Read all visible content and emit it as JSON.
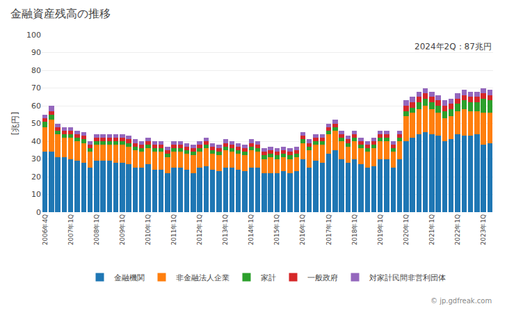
{
  "chart_data": {
    "type": "bar",
    "stacked": true,
    "title": "金融資産残高の推移",
    "y_label": "[兆円]",
    "annotations": [
      "2024年2Q：87兆円",
      "© jp.gdfreak.com"
    ],
    "categories": [
      "2006年4Q",
      null,
      null,
      null,
      "2007年1Q",
      null,
      null,
      null,
      "2008年1Q",
      null,
      null,
      null,
      "2009年1Q",
      null,
      null,
      null,
      "2010年1Q",
      null,
      null,
      null,
      "2011年1Q",
      null,
      null,
      null,
      "2012年1Q",
      null,
      null,
      null,
      "2013年1Q",
      null,
      null,
      null,
      "2014年1Q",
      null,
      null,
      null,
      "2015年1Q",
      null,
      null,
      null,
      "2016年1Q",
      null,
      null,
      null,
      "2017年1Q",
      null,
      null,
      null,
      "2018年1Q",
      null,
      null,
      null,
      "2019年1Q",
      null,
      null,
      null,
      "2020年1Q",
      null,
      null,
      null,
      "2021年1Q",
      null,
      null,
      null,
      "2022年1Q",
      null,
      null,
      null,
      "2023年1Q",
      null
    ],
    "series": [
      {
        "name": "金融機関",
        "values": [
          34,
          34,
          31,
          31,
          30,
          29,
          28,
          25,
          29,
          29,
          29,
          28,
          28,
          27,
          25,
          25,
          27,
          24,
          24,
          22,
          25,
          25,
          24,
          22,
          25,
          26,
          24,
          23,
          25,
          25,
          24,
          23,
          25,
          25,
          22,
          22,
          22,
          23,
          22,
          23,
          30,
          25,
          29,
          28,
          33,
          35,
          30,
          28,
          30,
          27,
          25,
          26,
          30,
          30,
          25,
          30,
          40,
          42,
          44,
          45,
          44,
          43,
          40,
          41,
          44,
          43,
          43,
          44,
          38,
          39
        ]
      },
      {
        "name": "非金融法人企業",
        "values": [
          14,
          18,
          13,
          11,
          12,
          11,
          11,
          9,
          9,
          9,
          9,
          10,
          10,
          10,
          10,
          9,
          9,
          10,
          10,
          9,
          9,
          9,
          9,
          10,
          9,
          10,
          9,
          9,
          10,
          9,
          9,
          9,
          10,
          9,
          8,
          9,
          8,
          8,
          8,
          8,
          9,
          10,
          9,
          10,
          11,
          11,
          10,
          9,
          10,
          9,
          9,
          10,
          10,
          10,
          9,
          10,
          14,
          14,
          14,
          15,
          14,
          13,
          13,
          13,
          13,
          15,
          14,
          13,
          18,
          17
        ]
      },
      {
        "name": "家計",
        "values": [
          3,
          3,
          2,
          2,
          2,
          2,
          2,
          2,
          2,
          2,
          2,
          2,
          2,
          2,
          2,
          2,
          2,
          2,
          2,
          2,
          2,
          2,
          2,
          2,
          2,
          2,
          2,
          2,
          2,
          2,
          2,
          2,
          2,
          2,
          2,
          2,
          2,
          2,
          2,
          2,
          2,
          2,
          2,
          2,
          2,
          2,
          2,
          2,
          2,
          2,
          2,
          2,
          2,
          2,
          2,
          2,
          3,
          3,
          4,
          4,
          4,
          4,
          4,
          4,
          4,
          5,
          5,
          5,
          8,
          7
        ]
      },
      {
        "name": "一般政府",
        "values": [
          2,
          2,
          2,
          2,
          2,
          2,
          2,
          2,
          2,
          2,
          2,
          2,
          2,
          2,
          2,
          2,
          2,
          2,
          2,
          2,
          2,
          2,
          2,
          2,
          2,
          2,
          2,
          2,
          2,
          2,
          2,
          2,
          2,
          2,
          2,
          2,
          2,
          2,
          2,
          2,
          2,
          2,
          2,
          2,
          2,
          2,
          2,
          2,
          2,
          2,
          2,
          2,
          2,
          2,
          2,
          2,
          3,
          3,
          3,
          3,
          3,
          3,
          3,
          3,
          3,
          3,
          3,
          3,
          3,
          3
        ]
      },
      {
        "name": "対家計民間非営利団体",
        "values": [
          2,
          3,
          2,
          2,
          2,
          2,
          2,
          2,
          2,
          2,
          2,
          2,
          2,
          2,
          2,
          2,
          2,
          2,
          2,
          2,
          2,
          2,
          2,
          2,
          2,
          2,
          2,
          2,
          2,
          2,
          2,
          2,
          2,
          2,
          2,
          2,
          2,
          2,
          2,
          2,
          2,
          2,
          2,
          2,
          2,
          2,
          2,
          2,
          2,
          2,
          2,
          2,
          2,
          2,
          2,
          2,
          3,
          3,
          3,
          3,
          3,
          3,
          3,
          3,
          3,
          3,
          3,
          3,
          3,
          3
        ]
      }
    ],
    "ylim": [
      0,
      100
    ],
    "yticks": [
      0,
      10,
      20,
      30,
      40,
      50,
      60,
      70,
      80,
      90,
      100
    ],
    "grid": true,
    "legend": "bottom"
  }
}
